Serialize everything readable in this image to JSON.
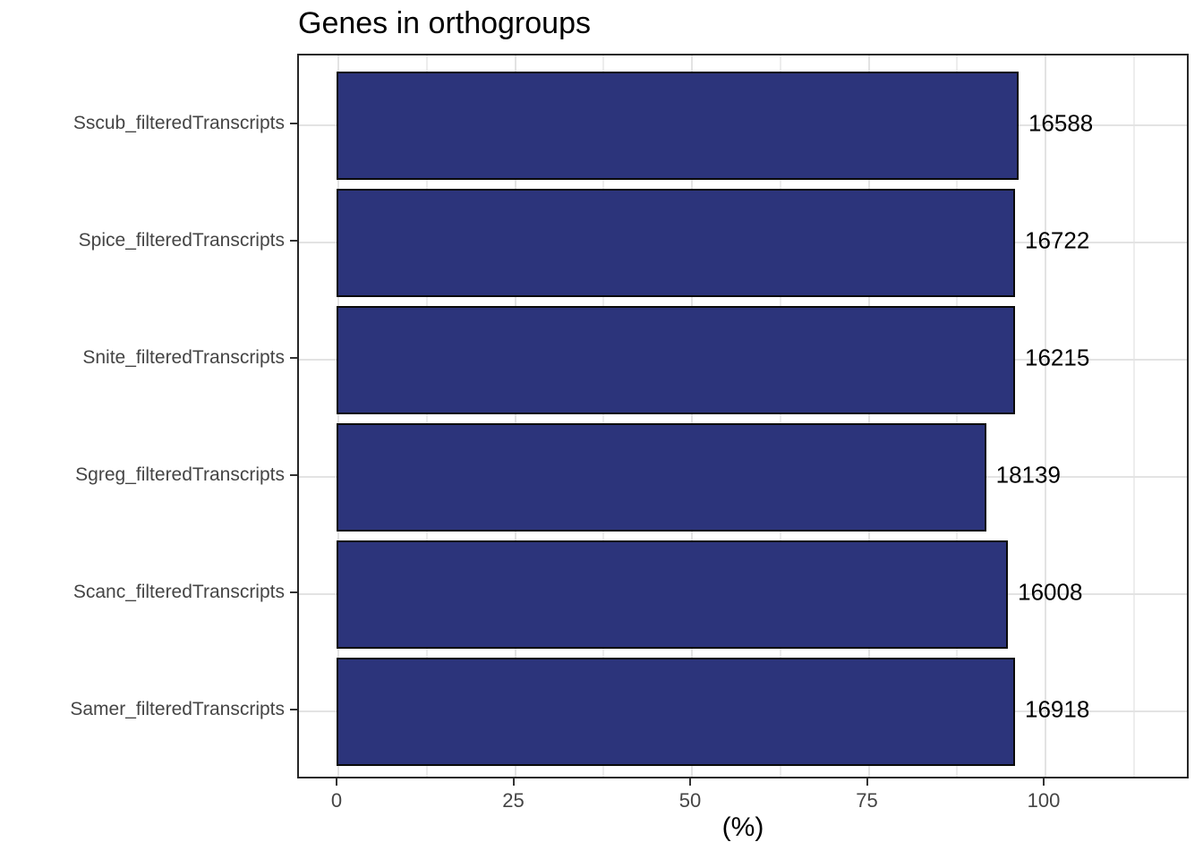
{
  "chart_data": {
    "type": "bar",
    "orientation": "horizontal",
    "title": "Genes in orthogroups",
    "xlabel": "(%)",
    "ylabel": "",
    "categories": [
      "Sscub_filteredTranscripts",
      "Spice_filteredTranscripts",
      "Snite_filteredTranscripts",
      "Sgreg_filteredTranscripts",
      "Scanc_filteredTranscripts",
      "Samer_filteredTranscripts"
    ],
    "values_percent": [
      96.2,
      95.7,
      95.7,
      91.6,
      94.7,
      95.7
    ],
    "bar_labels": [
      "16588",
      "16722",
      "16215",
      "18139",
      "16008",
      "16918"
    ],
    "x_ticks": [
      {
        "value": 0,
        "label": "0"
      },
      {
        "value": 25,
        "label": "25"
      },
      {
        "value": 50,
        "label": "50"
      },
      {
        "value": 75,
        "label": "75"
      },
      {
        "value": 100,
        "label": "100"
      }
    ],
    "x_minor_ticks": [
      12.5,
      37.5,
      62.5,
      87.5,
      112.5
    ],
    "x_domain": [
      -5.6,
      120.5
    ],
    "grid": "major x+y, minor x only",
    "legend": "none",
    "colors": {
      "bar_fill": "#2c347b",
      "bar_stroke": "#0a0a0a",
      "grid_major": "#e3e3e3",
      "grid_minor": "#ededed",
      "panel_border": "#262626",
      "axis_text": "#454545",
      "title_text": "#000000"
    }
  }
}
